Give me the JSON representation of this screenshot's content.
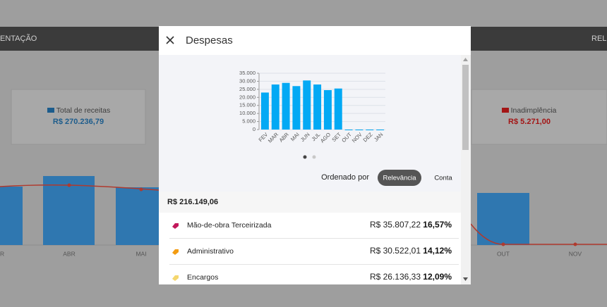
{
  "background": {
    "nav_left": "ENTAÇÃO",
    "nav_right": "REL",
    "cards": [
      {
        "label": "Total de receitas",
        "value": "R$ 270.236,79"
      },
      {
        "label": "Inadimplência",
        "value": "R$ 5.271,00"
      }
    ],
    "axis_labels": [
      "R",
      "ABR",
      "MAI",
      "OUT",
      "NOV"
    ]
  },
  "modal": {
    "title": "Despesas",
    "sort_label": "Ordenado por",
    "sort_options": [
      "Relevância",
      "Conta"
    ],
    "total": "R$ 216.149,06",
    "items": [
      {
        "name": "Mão-de-obra Terceirizada",
        "amount": "R$ 35.807,22",
        "percent": "16,57%",
        "color": "#c2185b"
      },
      {
        "name": "Administrativo",
        "amount": "R$ 30.522,01",
        "percent": "14,12%",
        "color": "#f39c12"
      },
      {
        "name": "Encargos",
        "amount": "R$ 26.136,33",
        "percent": "12,09%",
        "color": "#f5d76e"
      }
    ]
  },
  "chart_data": {
    "type": "bar",
    "categories": [
      "FEV",
      "MAR",
      "ABR",
      "MAI",
      "JUN",
      "JUL",
      "AGO",
      "SET",
      "OUT",
      "NOV",
      "DEZ",
      "JAN"
    ],
    "values": [
      23000,
      28000,
      29000,
      27000,
      30500,
      28000,
      24500,
      25500,
      0,
      0,
      0,
      0
    ],
    "color": "#03a9f4",
    "ylim": [
      0,
      35000
    ],
    "yticks": [
      0,
      {
        "value": 5000,
        "label": "5.000"
      },
      {
        "value": 10000,
        "label": "10.000"
      },
      {
        "value": 15000,
        "label": "15.000"
      },
      {
        "value": 20000,
        "label": "20.000"
      },
      {
        "value": 25000,
        "label": "25.000"
      },
      {
        "value": 30000,
        "label": "30.000"
      },
      {
        "value": 35000,
        "label": "35.000"
      }
    ],
    "grid": true
  }
}
